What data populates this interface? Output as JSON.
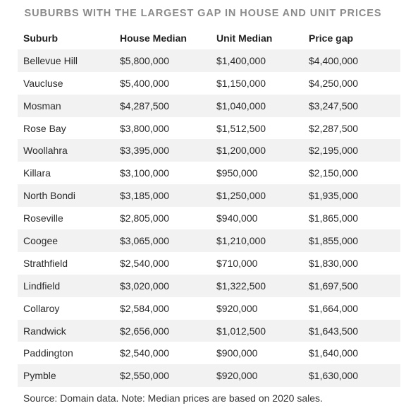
{
  "title": "SUBURBS WITH THE LARGEST GAP IN HOUSE AND UNIT PRICES",
  "table": {
    "headers": [
      "Suburb",
      "House Median",
      "Unit Median",
      "Price gap"
    ],
    "rows": [
      [
        "Bellevue Hill",
        "$5,800,000",
        "$1,400,000",
        "$4,400,000"
      ],
      [
        "Vaucluse",
        "$5,400,000",
        "$1,150,000",
        "$4,250,000"
      ],
      [
        "Mosman",
        "$4,287,500",
        "$1,040,000",
        "$3,247,500"
      ],
      [
        "Rose Bay",
        "$3,800,000",
        "$1,512,500",
        "$2,287,500"
      ],
      [
        "Woollahra",
        "$3,395,000",
        "$1,200,000",
        "$2,195,000"
      ],
      [
        "Killara",
        "$3,100,000",
        "$950,000",
        "$2,150,000"
      ],
      [
        "North Bondi",
        "$3,185,000",
        "$1,250,000",
        "$1,935,000"
      ],
      [
        "Roseville",
        "$2,805,000",
        "$940,000",
        "$1,865,000"
      ],
      [
        "Coogee",
        "$3,065,000",
        "$1,210,000",
        "$1,855,000"
      ],
      [
        "Strathfield",
        "$2,540,000",
        "$710,000",
        "$1,830,000"
      ],
      [
        "Lindfield",
        "$3,020,000",
        "$1,322,500",
        "$1,697,500"
      ],
      [
        "Collaroy",
        "$2,584,000",
        "$920,000",
        "$1,664,000"
      ],
      [
        "Randwick",
        "$2,656,000",
        "$1,012,500",
        "$1,643,500"
      ],
      [
        "Paddington",
        "$2,540,000",
        "$900,000",
        "$1,640,000"
      ],
      [
        "Pymble",
        "$2,550,000",
        "$920,000",
        "$1,630,000"
      ]
    ]
  },
  "source": "Source: Domain data. Note: Median prices are based on 2020 sales."
}
